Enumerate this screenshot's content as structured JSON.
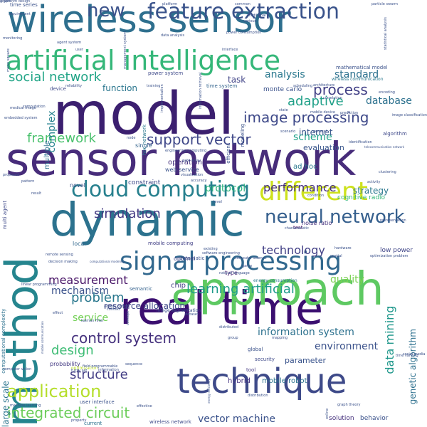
{
  "words": [
    {
      "text": "model",
      "color": "#3b1f6f",
      "size": 82,
      "angle": 0
    },
    {
      "text": "sensor network",
      "color": "#472c7a",
      "size": 64,
      "angle": 0
    },
    {
      "text": "wireless sensor",
      "color": "#2e6f8e",
      "size": 52,
      "angle": 0
    },
    {
      "text": "real time",
      "color": "#3b0f70",
      "size": 64,
      "angle": 0
    },
    {
      "text": "approach",
      "color": "#5ec962",
      "size": 64,
      "angle": 0
    },
    {
      "text": "dynamic",
      "color": "#2c728e",
      "size": 64,
      "angle": 0
    },
    {
      "text": "method",
      "color": "#25858e",
      "size": 62,
      "angle": -90
    },
    {
      "text": "technique",
      "color": "#3e4a89",
      "size": 48,
      "angle": 0
    },
    {
      "text": "artificial intelligence",
      "color": "#35b779",
      "size": 38,
      "angle": 0
    },
    {
      "text": "signal processing",
      "color": "#31688e",
      "size": 36,
      "angle": 0
    },
    {
      "text": "feature extraction",
      "color": "#3a538b",
      "size": 30,
      "angle": 0
    },
    {
      "text": "different",
      "color": "#cde11d",
      "size": 36,
      "angle": 0
    },
    {
      "text": "cloud computing",
      "color": "#27808e",
      "size": 30,
      "angle": 0
    },
    {
      "text": "neural network",
      "color": "#355f8d",
      "size": 26,
      "angle": 0
    },
    {
      "text": "new",
      "color": "#3b528b",
      "size": 26,
      "angle": 0
    },
    {
      "text": "application",
      "color": "#b5de2b",
      "size": 24,
      "angle": 0
    },
    {
      "text": "image processing",
      "color": "#3e4989",
      "size": 20,
      "angle": 0
    },
    {
      "text": "support vector",
      "color": "#3f4889",
      "size": 20,
      "angle": 0
    },
    {
      "text": "process",
      "color": "#424086",
      "size": 20,
      "angle": 0
    },
    {
      "text": "control system",
      "color": "#46327e",
      "size": 20,
      "angle": 0
    },
    {
      "text": "integrated circuit",
      "color": "#6ccd5a",
      "size": 20,
      "angle": 0
    },
    {
      "text": "social network",
      "color": "#20a486",
      "size": 18,
      "angle": 0
    },
    {
      "text": "simulation",
      "color": "#443a83",
      "size": 18,
      "angle": 0
    },
    {
      "text": "framework",
      "color": "#4ac16d",
      "size": 18,
      "angle": 0
    },
    {
      "text": "adaptive",
      "color": "#1fa088",
      "size": 18,
      "angle": 0
    },
    {
      "text": "learning artificial",
      "color": "#1e9b8a",
      "size": 18,
      "angle": 0
    },
    {
      "text": "problem",
      "color": "#2a788e",
      "size": 18,
      "angle": 0
    },
    {
      "text": "structure",
      "color": "#433e85",
      "size": 18,
      "angle": 0
    },
    {
      "text": "design",
      "color": "#3dbc74",
      "size": 18,
      "angle": 0
    },
    {
      "text": "performance",
      "color": "#46307e",
      "size": 16,
      "angle": 0
    },
    {
      "text": "technology",
      "color": "#424086",
      "size": 16,
      "angle": 0
    },
    {
      "text": "measurement",
      "color": "#481467",
      "size": 16,
      "angle": 0
    },
    {
      "text": "data mining",
      "color": "#1f978b",
      "size": 16,
      "angle": -90
    },
    {
      "text": "information system",
      "color": "#2c718e",
      "size": 14,
      "angle": 0
    },
    {
      "text": "environment",
      "color": "#3b528b",
      "size": 14,
      "angle": 0
    },
    {
      "text": "scheme",
      "color": "#1fa188",
      "size": 14,
      "angle": 0
    },
    {
      "text": "service",
      "color": "#73d056",
      "size": 14,
      "angle": 0
    },
    {
      "text": "mechanism",
      "color": "#3b528b",
      "size": 14,
      "angle": 0
    },
    {
      "text": "vector machine",
      "color": "#3b528b",
      "size": 14,
      "angle": 0
    },
    {
      "text": "quality",
      "color": "#7ad151",
      "size": 14,
      "angle": 0
    },
    {
      "text": "analysis",
      "color": "#2a788e",
      "size": 14,
      "angle": 0
    },
    {
      "text": "standard",
      "color": "#2c718e",
      "size": 14,
      "angle": 0
    },
    {
      "text": "database",
      "color": "#2c718e",
      "size": 14,
      "angle": 0
    },
    {
      "text": "protocol",
      "color": "#2db27d",
      "size": 14,
      "angle": 0
    },
    {
      "text": "complex",
      "color": "#26828e",
      "size": 14,
      "angle": -90
    },
    {
      "text": "function",
      "color": "#2a768e",
      "size": 12,
      "angle": 0
    },
    {
      "text": "task",
      "color": "#414487",
      "size": 12,
      "angle": 0
    },
    {
      "text": "internet",
      "color": "#39558c",
      "size": 12,
      "angle": 0
    },
    {
      "text": "strategy",
      "color": "#2a778e",
      "size": 12,
      "angle": 0
    },
    {
      "text": "genetic algorithm",
      "color": "#2d708e",
      "size": 12,
      "angle": -90
    },
    {
      "text": "resource allocation",
      "color": "#3f4788",
      "size": 12,
      "angle": 0
    },
    {
      "text": "evaluation",
      "color": "#39568c",
      "size": 11,
      "angle": 0
    },
    {
      "text": "large scale",
      "color": "#2b758e",
      "size": 12,
      "angle": -90
    },
    {
      "text": "parameter",
      "color": "#3a548c",
      "size": 11,
      "angle": 0
    },
    {
      "text": "hybrid",
      "color": "#453581",
      "size": 10,
      "angle": 0
    },
    {
      "text": "mobile robot",
      "color": "#2c738e",
      "size": 10,
      "angle": 0
    },
    {
      "text": "solution",
      "color": "#46327e",
      "size": 9,
      "angle": 0
    },
    {
      "text": "behavior",
      "color": "#3b528b",
      "size": 9,
      "angle": 0
    },
    {
      "text": "low power",
      "color": "#404688",
      "size": 9,
      "angle": 0
    },
    {
      "text": "monte carlo",
      "color": "#3b528b",
      "size": 9,
      "angle": 0
    },
    {
      "text": "ad hoc",
      "color": "#2a788e",
      "size": 10,
      "angle": 0
    },
    {
      "text": "cognitive radio",
      "color": "#35b779",
      "size": 9,
      "angle": 0
    },
    {
      "text": "operation",
      "color": "#46327e",
      "size": 10,
      "angle": 0
    },
    {
      "text": "constraint",
      "color": "#3e4989",
      "size": 9,
      "angle": 0
    },
    {
      "text": "chip",
      "color": "#433e85",
      "size": 10,
      "angle": 0
    },
    {
      "text": "multiple",
      "color": "#2c718e",
      "size": 10,
      "angle": -90
    },
    {
      "text": "probability",
      "color": "#443a83",
      "size": 8,
      "angle": 0
    },
    {
      "text": "novel",
      "color": "#3b528b",
      "size": 8,
      "angle": 0
    },
    {
      "text": "web service",
      "color": "#3a538b",
      "size": 8,
      "angle": 0
    },
    {
      "text": "single",
      "color": "#33638d",
      "size": 8,
      "angle": 0
    },
    {
      "text": "local",
      "color": "#31688e",
      "size": 8,
      "angle": 0
    },
    {
      "text": "mobile computing",
      "color": "#424086",
      "size": 7,
      "angle": 0
    },
    {
      "text": "optimal",
      "color": "#414487",
      "size": 8,
      "angle": 0
    },
    {
      "text": "automatic",
      "color": "#3b528b",
      "size": 7,
      "angle": 0
    },
    {
      "text": "semantic",
      "color": "#34618d",
      "size": 7,
      "angle": 0
    },
    {
      "text": "type",
      "color": "#482374",
      "size": 8,
      "angle": 0
    },
    {
      "text": "security",
      "color": "#3e4989",
      "size": 7,
      "angle": 0
    },
    {
      "text": "global",
      "color": "#3b528b",
      "size": 7,
      "angle": 0
    },
    {
      "text": "tool",
      "color": "#443a83",
      "size": 7,
      "angle": 0
    },
    {
      "text": "noise ratio",
      "color": "#46327e",
      "size": 8,
      "angle": 0
    },
    {
      "text": "test",
      "color": "#481668",
      "size": 7,
      "angle": 0
    },
    {
      "text": "user interface",
      "color": "#3b528b",
      "size": 7,
      "angle": 0
    },
    {
      "text": "current",
      "color": "#2c718e",
      "size": 7,
      "angle": 0
    },
    {
      "text": "wireless network",
      "color": "#3e4989",
      "size": 7,
      "angle": 0
    },
    {
      "text": "mathematical model",
      "color": "#3b528b",
      "size": 7,
      "angle": 0
    },
    {
      "text": "time system",
      "color": "#33638d",
      "size": 7,
      "angle": 0
    },
    {
      "text": "power system",
      "color": "#3e4989",
      "size": 7,
      "angle": 0
    },
    {
      "text": "wireless communication",
      "color": "#2a788e",
      "size": 6,
      "angle": 0
    },
    {
      "text": "time series",
      "color": "#3b528b",
      "size": 7,
      "angle": 0
    },
    {
      "text": "device",
      "color": "#3e4989",
      "size": 7,
      "angle": 0
    },
    {
      "text": "multi agent",
      "color": "#3e4989",
      "size": 7,
      "angle": -90
    },
    {
      "text": "computational complexity",
      "color": "#2c718e",
      "size": 7,
      "angle": -90
    },
    {
      "text": "hoc network",
      "color": "#2a788e",
      "size": 7,
      "angle": -90
    },
    {
      "text": "modeling",
      "color": "#3b528b",
      "size": 7,
      "angle": -90
    },
    {
      "text": "efficient",
      "color": "#3b528b",
      "size": 7,
      "angle": -90
    },
    {
      "text": "algorithm",
      "color": "#3e4989",
      "size": 7,
      "angle": 0
    },
    {
      "text": "image segmentation",
      "color": "#3b528b",
      "size": 6,
      "angle": 0
    },
    {
      "text": "optimization",
      "color": "#bddf26",
      "size": 6,
      "angle": 0
    },
    {
      "text": "energy consumption",
      "color": "#2a788e",
      "size": 6,
      "angle": 0
    },
    {
      "text": "representation",
      "color": "#3b528b",
      "size": 5,
      "angle": 0
    },
    {
      "text": "condition",
      "color": "#3b528b",
      "size": 5,
      "angle": 0
    },
    {
      "text": "identification",
      "color": "#3b528b",
      "size": 5,
      "angle": 0
    },
    {
      "text": "architecture",
      "color": "#3b528b",
      "size": 5,
      "angle": 0
    },
    {
      "text": "accuracy",
      "color": "#3b528b",
      "size": 5,
      "angle": 0
    },
    {
      "text": "visualization",
      "color": "#3b528b",
      "size": 5,
      "angle": 0
    },
    {
      "text": "decision making",
      "color": "#3b528b",
      "size": 5,
      "angle": 0
    },
    {
      "text": "machine learning",
      "color": "#3b528b",
      "size": 5,
      "angle": 0
    },
    {
      "text": "graph theory",
      "color": "#3b528b",
      "size": 5,
      "angle": 0
    },
    {
      "text": "dataset",
      "color": "#3b528b",
      "size": 5,
      "angle": 0
    },
    {
      "text": "natural language",
      "color": "#3b528b",
      "size": 5,
      "angle": 0
    },
    {
      "text": "computer science",
      "color": "#3b528b",
      "size": 5,
      "angle": 0
    },
    {
      "text": "software engineering",
      "color": "#3b528b",
      "size": 5,
      "angle": 0
    },
    {
      "text": "distribution",
      "color": "#3b528b",
      "size": 5,
      "angle": 0
    },
    {
      "text": "online",
      "color": "#3b528b",
      "size": 5,
      "angle": -90
    },
    {
      "text": "field programmable",
      "color": "#3b528b",
      "size": 5,
      "angle": 0
    },
    {
      "text": "gate array",
      "color": "#3b528b",
      "size": 5,
      "angle": 0
    },
    {
      "text": "level",
      "color": "#3b528b",
      "size": 5,
      "angle": 0
    },
    {
      "text": "effective",
      "color": "#3b528b",
      "size": 5,
      "angle": 0
    },
    {
      "text": "fuzzy set",
      "color": "#3b528b",
      "size": 5,
      "angle": 0
    },
    {
      "text": "information",
      "color": "#3b528b",
      "size": 5,
      "angle": 0
    },
    {
      "text": "sequence",
      "color": "#3b528b",
      "size": 5,
      "angle": 0
    },
    {
      "text": "group",
      "color": "#3b528b",
      "size": 5,
      "angle": 0
    },
    {
      "text": "context",
      "color": "#3b528b",
      "size": 5,
      "angle": 0
    },
    {
      "text": "prediction",
      "color": "#3b528b",
      "size": 5,
      "angle": 0
    },
    {
      "text": "mobile device",
      "color": "#3b528b",
      "size": 5,
      "angle": 0
    },
    {
      "text": "linear programming",
      "color": "#3b528b",
      "size": 5,
      "angle": 0
    },
    {
      "text": "statistical analysis",
      "color": "#3b528b",
      "size": 5,
      "angle": -90
    },
    {
      "text": "particle swarm",
      "color": "#3b528b",
      "size": 5,
      "angle": 0
    },
    {
      "text": "scheduling",
      "color": "#3b528b",
      "size": 5,
      "angle": 0
    },
    {
      "text": "platform",
      "color": "#3b528b",
      "size": 5,
      "angle": 0
    },
    {
      "text": "requirement",
      "color": "#3b528b",
      "size": 5,
      "angle": 0
    },
    {
      "text": "agent system",
      "color": "#3b528b",
      "size": 5,
      "angle": 0
    },
    {
      "text": "implementation",
      "color": "#3b528b",
      "size": 5,
      "angle": -90
    },
    {
      "text": "information retrieval",
      "color": "#3b528b",
      "size": 5,
      "angle": -90
    },
    {
      "text": "management system",
      "color": "#3b528b",
      "size": 5,
      "angle": -90
    },
    {
      "text": "mean square",
      "color": "#3b528b",
      "size": 5,
      "angle": -90
    },
    {
      "text": "data analysis",
      "color": "#3b528b",
      "size": 5,
      "angle": 0
    },
    {
      "text": "interface",
      "color": "#3b528b",
      "size": 5,
      "angle": 0
    },
    {
      "text": "reliability",
      "color": "#3b528b",
      "size": 5,
      "angle": 0
    },
    {
      "text": "training",
      "color": "#3b528b",
      "size": 5,
      "angle": 0
    },
    {
      "text": "correlation",
      "color": "#3b528b",
      "size": 5,
      "angle": 0
    },
    {
      "text": "encoding",
      "color": "#3b528b",
      "size": 5,
      "angle": 0
    },
    {
      "text": "image classification",
      "color": "#3b528b",
      "size": 5,
      "angle": 0
    },
    {
      "text": "engineering computing",
      "color": "#3b528b",
      "size": 5,
      "angle": 0
    },
    {
      "text": "node",
      "color": "#3b528b",
      "size": 5,
      "angle": 0
    },
    {
      "text": "telecommunication network",
      "color": "#3b528b",
      "size": 4,
      "angle": 0
    },
    {
      "text": "clustering",
      "color": "#3b528b",
      "size": 5,
      "angle": 0
    },
    {
      "text": "activity",
      "color": "#3b528b",
      "size": 5,
      "angle": 0
    },
    {
      "text": "spatial",
      "color": "#3b528b",
      "size": 5,
      "angle": 0
    },
    {
      "text": "optimization problem",
      "color": "#3b528b",
      "size": 5,
      "angle": 0
    },
    {
      "text": "hardware",
      "color": "#3b528b",
      "size": 5,
      "angle": 0
    },
    {
      "text": "characteristic",
      "color": "#3b528b",
      "size": 5,
      "angle": 0
    },
    {
      "text": "distributed",
      "color": "#3b528b",
      "size": 5,
      "angle": 0
    },
    {
      "text": "mapping",
      "color": "#3b528b",
      "size": 5,
      "angle": 0
    },
    {
      "text": "computer vision",
      "color": "#3b528b",
      "size": 5,
      "angle": 0
    },
    {
      "text": "embedded system",
      "color": "#3b528b",
      "size": 5,
      "angle": 0
    },
    {
      "text": "computation",
      "color": "#3b528b",
      "size": 5,
      "angle": 0
    },
    {
      "text": "proposed",
      "color": "#3b528b",
      "size": 5,
      "angle": 0
    },
    {
      "text": "result",
      "color": "#3b528b",
      "size": 5,
      "angle": 0
    },
    {
      "text": "effect",
      "color": "#3b528b",
      "size": 5,
      "angle": 0
    },
    {
      "text": "kalman filter",
      "color": "#3b528b",
      "size": 5,
      "angle": 0
    },
    {
      "text": "access control",
      "color": "#3b528b",
      "size": 5,
      "angle": 0
    },
    {
      "text": "computational modeling",
      "color": "#3b528b",
      "size": 4,
      "angle": 0
    },
    {
      "text": "remote sensing",
      "color": "#3b528b",
      "size": 5,
      "angle": 0
    },
    {
      "text": "pattern",
      "color": "#3b528b",
      "size": 5,
      "angle": 0
    },
    {
      "text": "power consumption",
      "color": "#3b528b",
      "size": 5,
      "angle": 0
    },
    {
      "text": "various",
      "color": "#3b528b",
      "size": 5,
      "angle": 0
    },
    {
      "text": "common",
      "color": "#3b528b",
      "size": 5,
      "angle": 0
    },
    {
      "text": "state",
      "color": "#3b528b",
      "size": 5,
      "angle": 0
    },
    {
      "text": "scenario",
      "color": "#3b528b",
      "size": 5,
      "angle": 0
    },
    {
      "text": "general",
      "color": "#3b528b",
      "size": 5,
      "angle": 0
    },
    {
      "text": "monitoring",
      "color": "#3b528b",
      "size": 5,
      "angle": 0
    },
    {
      "text": "medical image",
      "color": "#3b528b",
      "size": 5,
      "angle": 0
    },
    {
      "text": "user",
      "color": "#3b528b",
      "size": 5,
      "angle": 0
    },
    {
      "text": "traditional",
      "color": "#3b528b",
      "size": 5,
      "angle": 0
    },
    {
      "text": "existing",
      "color": "#3b528b",
      "size": 5,
      "angle": 0
    },
    {
      "text": "game",
      "color": "#3b528b",
      "size": 5,
      "angle": 0
    },
    {
      "text": "time varying",
      "color": "#3b528b",
      "size": 5,
      "angle": 0
    },
    {
      "text": "social media",
      "color": "#3b528b",
      "size": 5,
      "angle": 0
    },
    {
      "text": "energy efficiency",
      "color": "#3b528b",
      "size": 4,
      "angle": -90
    },
    {
      "text": "mobile communication",
      "color": "#3b528b",
      "size": 4,
      "angle": -90
    },
    {
      "text": "concept",
      "color": "#3b528b",
      "size": 5,
      "angle": -90
    },
    {
      "text": "property",
      "color": "#3b528b",
      "size": 5,
      "angle": 0
    },
    {
      "text": "graph",
      "color": "#3b528b",
      "size": 5,
      "angle": 0
    },
    {
      "text": "algorithm design",
      "color": "#3b528b",
      "size": 5,
      "angle": 0
    }
  ]
}
